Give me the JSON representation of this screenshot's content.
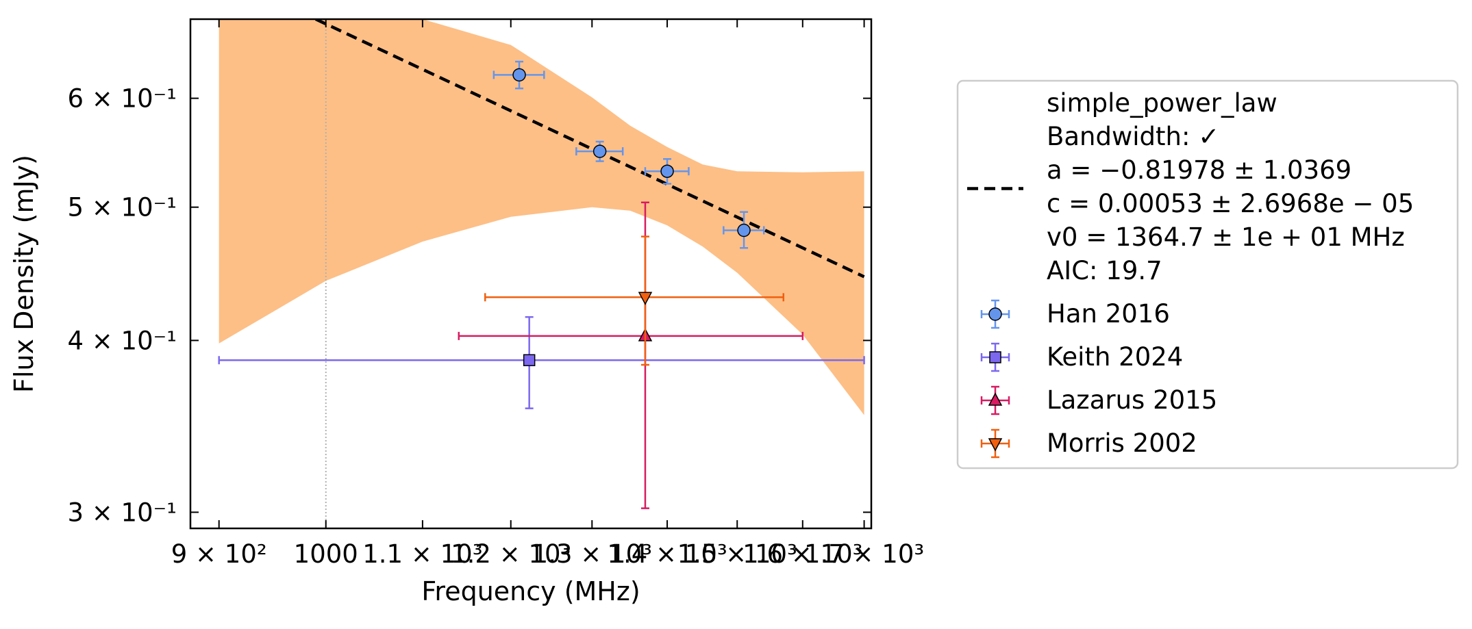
{
  "chart_data": {
    "type": "scatter",
    "xlabel": "Frequency (MHz)",
    "ylabel": "Flux Density (mJy)",
    "x_scale": "log",
    "y_scale": "log",
    "xlim": [
      875,
      1712
    ],
    "ylim": [
      0.292,
      0.685
    ],
    "grid": false,
    "legend_position": "outside right",
    "x_ticks": [
      {
        "value": 900,
        "label": "9 × 10²"
      },
      {
        "value": 1000,
        "label": "1000"
      },
      {
        "value": 1100,
        "label": "1.1 × 10³"
      },
      {
        "value": 1200,
        "label": "1.2 × 10³"
      },
      {
        "value": 1300,
        "label": "1.3 × 10³"
      },
      {
        "value": 1400,
        "label": "1.4 × 10³"
      },
      {
        "value": 1500,
        "label": "1.5 × 10³"
      },
      {
        "value": 1600,
        "label": "1.6 × 10³"
      },
      {
        "value": 1700,
        "label": "1.7 × 10³"
      }
    ],
    "y_ticks": [
      {
        "value": 0.3,
        "label": "3 × 10⁻¹"
      },
      {
        "value": 0.4,
        "label": "4 × 10⁻¹"
      },
      {
        "value": 0.5,
        "label": "5 × 10⁻¹"
      },
      {
        "value": 0.6,
        "label": "6 × 10⁻¹"
      }
    ],
    "reference_line_x": 1000,
    "fit": {
      "model": "simple_power_law",
      "legend_lines": [
        "simple_power_law",
        "Bandwidth: ✓",
        "a = −0.81978 ± 1.0369",
        "c = 0.00053 ± 2.6968e − 05",
        "v0 = 1364.7 ± 1e + 01 MHz",
        "AIC: 19.7"
      ],
      "line_color": "#000000",
      "line_style": "dashed",
      "line_points": [
        {
          "x": 990,
          "y": 0.685
        },
        {
          "x": 1700,
          "y": 0.445
        }
      ],
      "band_color": "#fdbf86",
      "band": [
        {
          "x": 900,
          "lo": 0.398,
          "hi": 0.685
        },
        {
          "x": 1000,
          "lo": 0.442,
          "hi": 0.685
        },
        {
          "x": 1100,
          "lo": 0.472,
          "hi": 0.685
        },
        {
          "x": 1200,
          "lo": 0.492,
          "hi": 0.656
        },
        {
          "x": 1300,
          "lo": 0.5,
          "hi": 0.601
        },
        {
          "x": 1350,
          "lo": 0.497,
          "hi": 0.573
        },
        {
          "x": 1400,
          "lo": 0.485,
          "hi": 0.553
        },
        {
          "x": 1450,
          "lo": 0.468,
          "hi": 0.537
        },
        {
          "x": 1500,
          "lo": 0.448,
          "hi": 0.531
        },
        {
          "x": 1600,
          "lo": 0.404,
          "hi": 0.53
        },
        {
          "x": 1700,
          "lo": 0.353,
          "hi": 0.531
        }
      ]
    },
    "series": [
      {
        "name": "Han 2016",
        "color": "#6495ed",
        "marker": "circle",
        "points": [
          {
            "x": 1210,
            "y": 0.624,
            "xerr_lo": 1180,
            "xerr_hi": 1240,
            "yerr_lo": 0.61,
            "yerr_hi": 0.638
          },
          {
            "x": 1310,
            "y": 0.549,
            "xerr_lo": 1280,
            "xerr_hi": 1340,
            "yerr_lo": 0.54,
            "yerr_hi": 0.558
          },
          {
            "x": 1400,
            "y": 0.531,
            "xerr_lo": 1370,
            "xerr_hi": 1430,
            "yerr_lo": 0.52,
            "yerr_hi": 0.542
          },
          {
            "x": 1510,
            "y": 0.481,
            "xerr_lo": 1480,
            "xerr_hi": 1540,
            "yerr_lo": 0.467,
            "yerr_hi": 0.496
          }
        ]
      },
      {
        "name": "Keith 2024",
        "color": "#7b68ee",
        "marker": "square",
        "points": [
          {
            "x": 1222,
            "y": 0.387,
            "xerr_lo": 900,
            "xerr_hi": 1700,
            "yerr_lo": 0.357,
            "yerr_hi": 0.416
          }
        ]
      },
      {
        "name": "Lazarus 2015",
        "color": "#d81b60",
        "marker": "triangle-up",
        "points": [
          {
            "x": 1370,
            "y": 0.403,
            "xerr_lo": 1140,
            "xerr_hi": 1600,
            "yerr_lo": 0.302,
            "yerr_hi": 0.504
          }
        ]
      },
      {
        "name": "Morris 2002",
        "color": "#f06010",
        "marker": "triangle-down",
        "points": [
          {
            "x": 1370,
            "y": 0.43,
            "xerr_lo": 1170,
            "xerr_hi": 1570,
            "yerr_lo": 0.384,
            "yerr_hi": 0.476
          }
        ]
      }
    ]
  }
}
